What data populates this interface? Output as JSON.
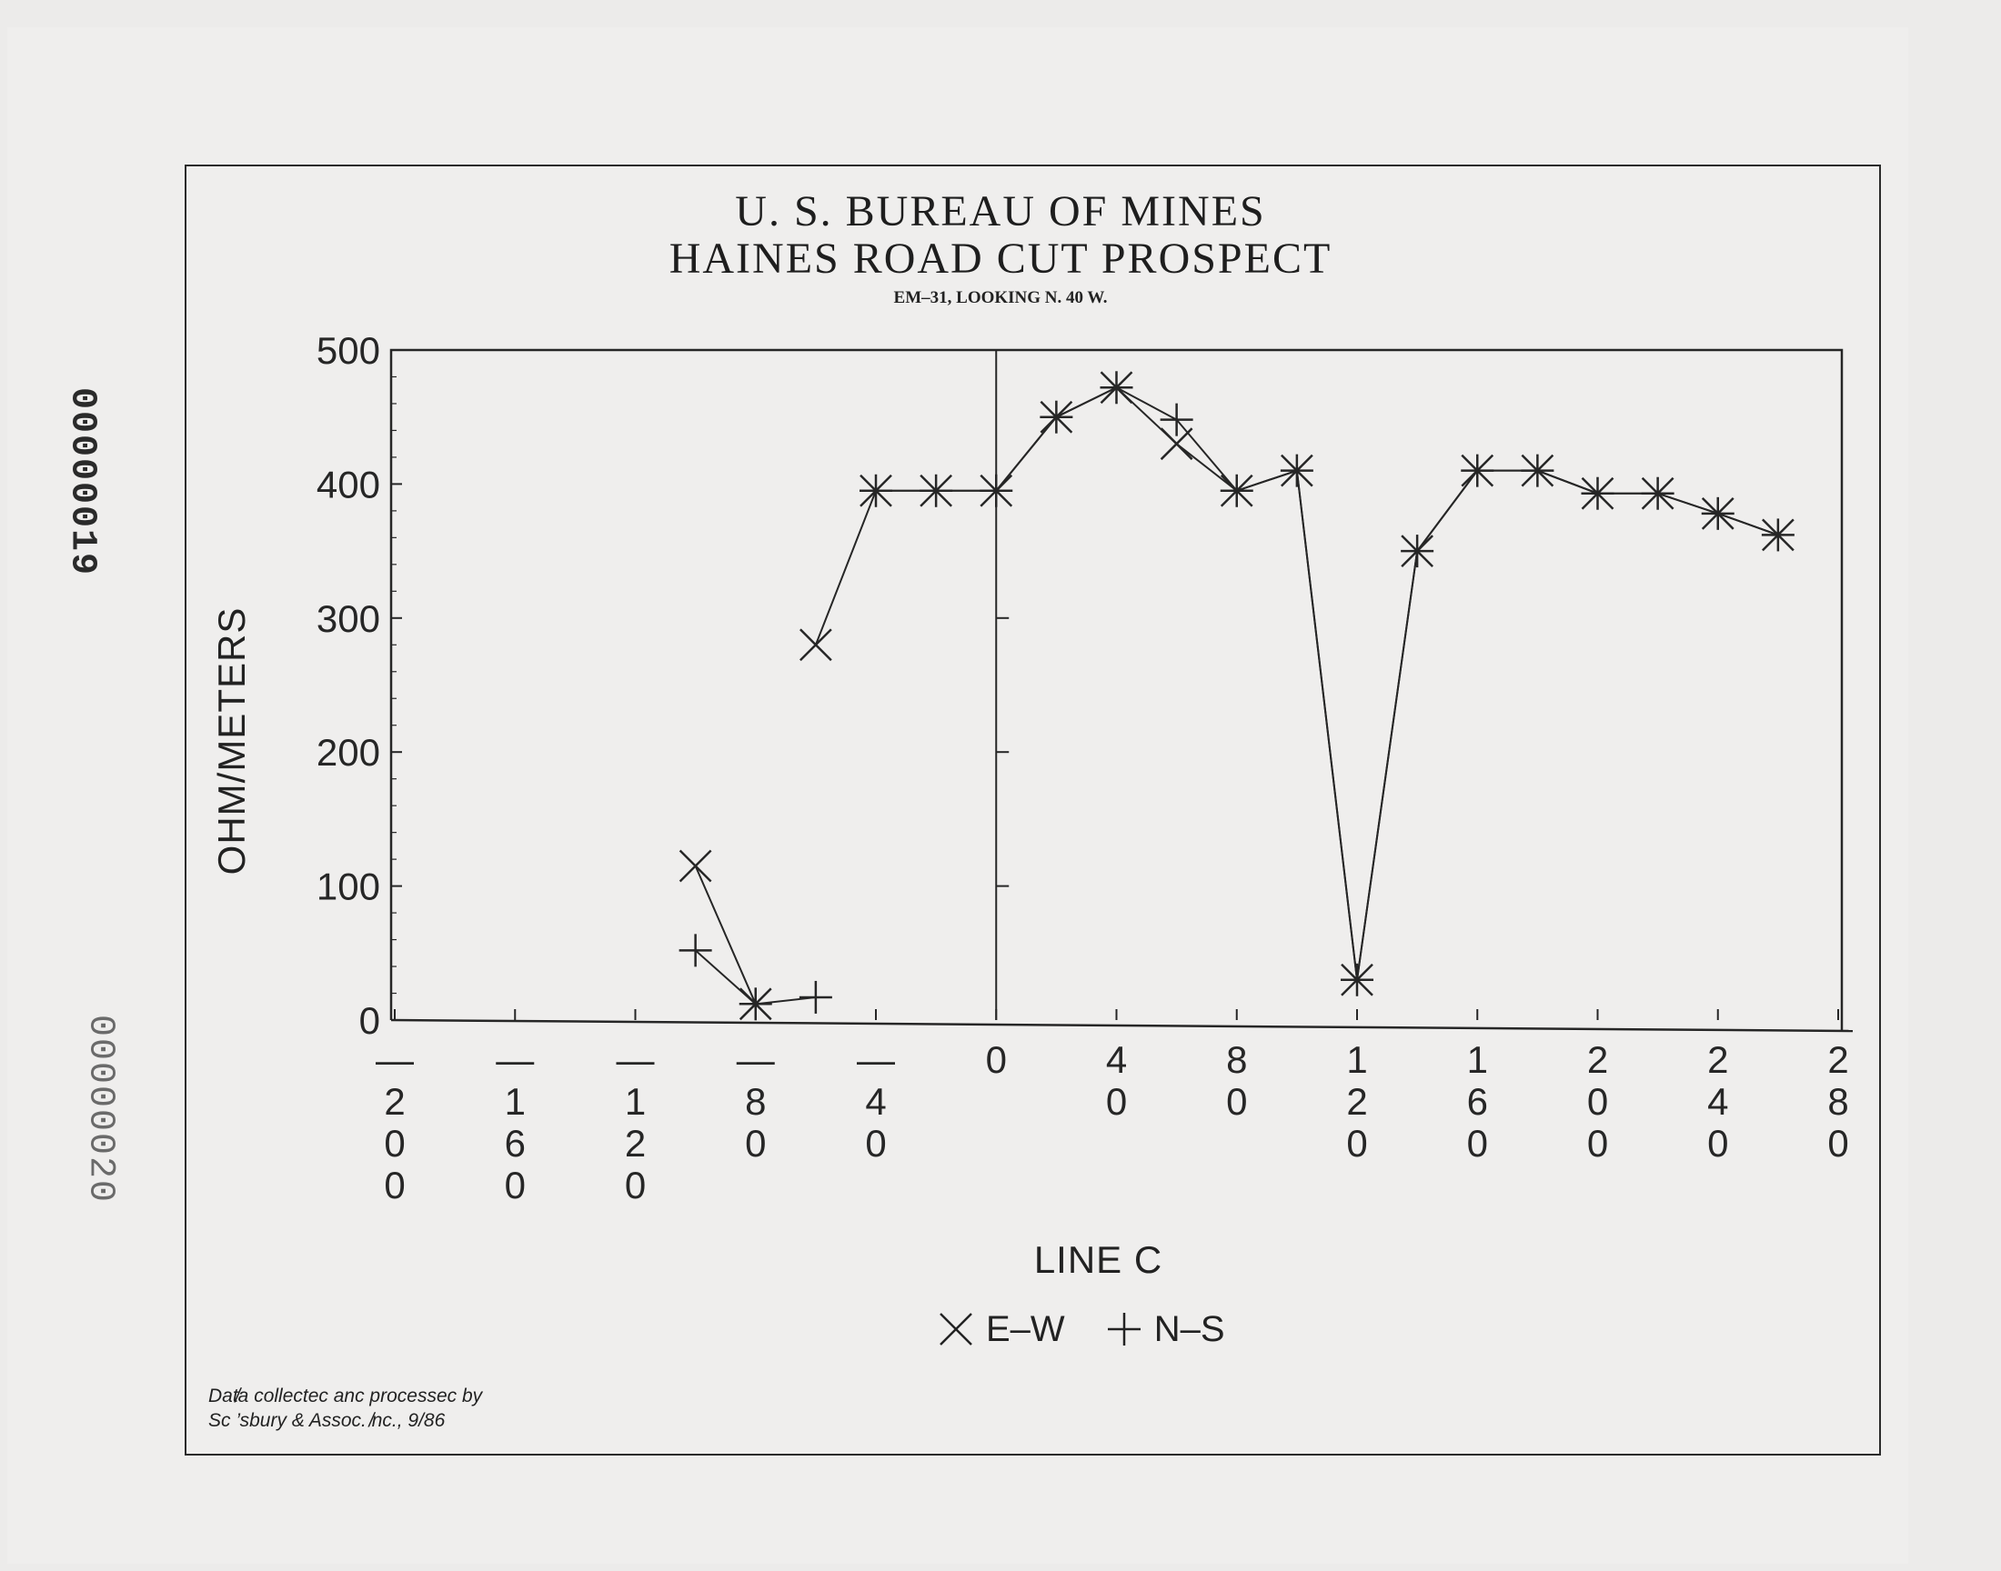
{
  "stamps": {
    "top": "00000019",
    "bottom": "00000020"
  },
  "credit": {
    "line1": "Dat̸a collectec anc processec by",
    "line2": "Sc ’sbury & Assoc. ̸nc., 9/86"
  },
  "legend": {
    "ew_label": "E–W",
    "ns_label": "N–S"
  },
  "chart_data": {
    "type": "line",
    "title": "U. S. BUREAU OF MINES",
    "subtitle": "HAINES ROAD CUT PROSPECT",
    "note": "EM–31, LOOKING N. 40 W.",
    "xlabel": "LINE C",
    "ylabel": "OHM/METERS",
    "xlim": [
      -200,
      280
    ],
    "ylim": [
      0,
      500
    ],
    "x_ticks": [
      -200,
      -160,
      -120,
      -80,
      -40,
      0,
      40,
      80,
      120,
      160,
      200,
      240,
      280
    ],
    "y_ticks": [
      0,
      100,
      200,
      300,
      400,
      500
    ],
    "inner_axis_ticks": [
      100,
      200,
      300
    ],
    "grid": false,
    "series": [
      {
        "name": "E–W",
        "marker": "x",
        "segments": [
          {
            "x": [
              -100,
              -80
            ],
            "y": [
              115,
              12
            ]
          },
          {
            "x": [
              -60,
              -40,
              -20,
              0,
              20,
              40,
              60,
              80,
              100,
              120,
              140,
              160,
              180,
              200,
              220,
              240,
              260
            ],
            "y": [
              280,
              395,
              395,
              395,
              450,
              472,
              430,
              395,
              410,
              30,
              350,
              410,
              410,
              393,
              393,
              378,
              362
            ]
          }
        ]
      },
      {
        "name": "N–S",
        "marker": "+",
        "segments": [
          {
            "x": [
              -100,
              -80,
              -60
            ],
            "y": [
              52,
              12,
              17
            ]
          },
          {
            "x": [
              -40,
              -20,
              0,
              20,
              40,
              60,
              80,
              100,
              120,
              140,
              160,
              180,
              200,
              220,
              240,
              260
            ],
            "y": [
              395,
              395,
              395,
              450,
              472,
              448,
              395,
              410,
              30,
              350,
              410,
              410,
              393,
              393,
              378,
              362
            ]
          }
        ]
      }
    ]
  }
}
